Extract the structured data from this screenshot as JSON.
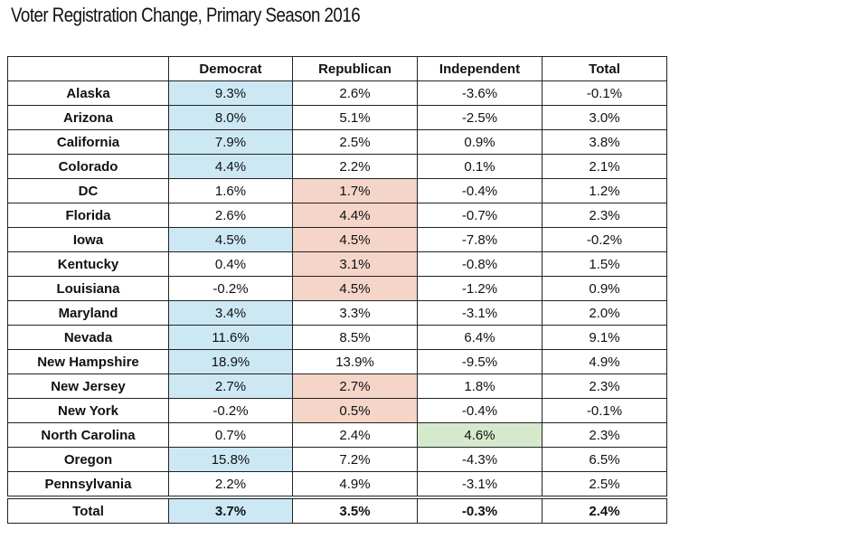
{
  "title": "Voter Registration Change, Primary Season 2016",
  "table": {
    "header": [
      "",
      "Democrat",
      "Republican",
      "Independent",
      "Total"
    ],
    "rows": [
      [
        "Alaska",
        {
          "text": "9.3%",
          "fill": "#cde8f5"
        },
        "2.6%",
        "-3.6%",
        "-0.1%"
      ],
      [
        "Arizona",
        {
          "text": "8.0%",
          "fill": "#cde8f5"
        },
        "5.1%",
        "-2.5%",
        "3.0%"
      ],
      [
        "California",
        {
          "text": "7.9%",
          "fill": "#cde8f5"
        },
        "2.5%",
        "0.9%",
        "3.8%"
      ],
      [
        "Colorado",
        {
          "text": "4.4%",
          "fill": "#cde8f5"
        },
        "2.2%",
        "0.1%",
        "2.1%"
      ],
      [
        "DC",
        "1.6%",
        {
          "text": "1.7%",
          "fill": "#f5d5c8"
        },
        "-0.4%",
        "1.2%"
      ],
      [
        "Florida",
        "2.6%",
        {
          "text": "4.4%",
          "fill": "#f5d5c8"
        },
        "-0.7%",
        "2.3%"
      ],
      [
        "Iowa",
        {
          "text": "4.5%",
          "fill": "#cde8f5"
        },
        {
          "text": "4.5%",
          "fill": "#f5d5c8"
        },
        "-7.8%",
        "-0.2%"
      ],
      [
        "Kentucky",
        "0.4%",
        {
          "text": "3.1%",
          "fill": "#f5d5c8"
        },
        "-0.8%",
        "1.5%"
      ],
      [
        "Louisiana",
        "-0.2%",
        {
          "text": "4.5%",
          "fill": "#f5d5c8"
        },
        "-1.2%",
        "0.9%"
      ],
      [
        "Maryland",
        {
          "text": "3.4%",
          "fill": "#cde8f5"
        },
        "3.3%",
        "-3.1%",
        "2.0%"
      ],
      [
        "Nevada",
        {
          "text": "11.6%",
          "fill": "#cde8f5"
        },
        "8.5%",
        "6.4%",
        "9.1%"
      ],
      [
        "New Hampshire",
        {
          "text": "18.9%",
          "fill": "#cde8f5"
        },
        "13.9%",
        "-9.5%",
        "4.9%"
      ],
      [
        "New Jersey",
        {
          "text": "2.7%",
          "fill": "#cde8f5"
        },
        {
          "text": "2.7%",
          "fill": "#f5d5c8"
        },
        "1.8%",
        "2.3%"
      ],
      [
        "New York",
        "-0.2%",
        {
          "text": "0.5%",
          "fill": "#f5d5c8"
        },
        "-0.4%",
        "-0.1%"
      ],
      [
        "North Carolina",
        "0.7%",
        "2.4%",
        {
          "text": "4.6%",
          "fill": "#d5eacc"
        },
        "2.3%"
      ],
      [
        "Oregon",
        {
          "text": "15.8%",
          "fill": "#cde8f5"
        },
        "7.2%",
        "-4.3%",
        "6.5%"
      ],
      [
        "Pennsylvania",
        "2.2%",
        "4.9%",
        "-3.1%",
        "2.5%"
      ]
    ],
    "total_row": [
      "Total",
      {
        "text": "3.7%",
        "fill": "#cde8f5"
      },
      "3.5%",
      "-0.3%",
      "2.4%"
    ]
  }
}
